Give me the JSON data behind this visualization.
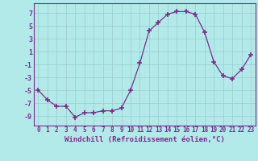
{
  "x": [
    0,
    1,
    2,
    3,
    4,
    5,
    6,
    7,
    8,
    9,
    10,
    11,
    12,
    13,
    14,
    15,
    16,
    17,
    18,
    19,
    20,
    21,
    22,
    23
  ],
  "y": [
    -5,
    -6.5,
    -7.5,
    -7.5,
    -9.2,
    -8.5,
    -8.5,
    -8.2,
    -8.2,
    -7.8,
    -5.0,
    -0.8,
    4.2,
    5.5,
    6.8,
    7.2,
    7.2,
    6.8,
    4.0,
    -0.6,
    -2.8,
    -3.2,
    -1.8,
    0.5
  ],
  "line_color": "#7b2d8b",
  "marker": "+",
  "marker_size": 4,
  "marker_lw": 1.2,
  "bg_color": "#b2eaea",
  "grid_color": "#a0d0d0",
  "xlabel": "Windchill (Refroidissement éolien,°C)",
  "ylabel_ticks": [
    -9,
    -7,
    -5,
    -3,
    -1,
    1,
    3,
    5,
    7
  ],
  "xlim": [
    -0.5,
    23.5
  ],
  "ylim": [
    -10.5,
    8.5
  ],
  "tick_color": "#7b2d8b",
  "label_fontsize": 5.5,
  "xlabel_fontsize": 6.5
}
